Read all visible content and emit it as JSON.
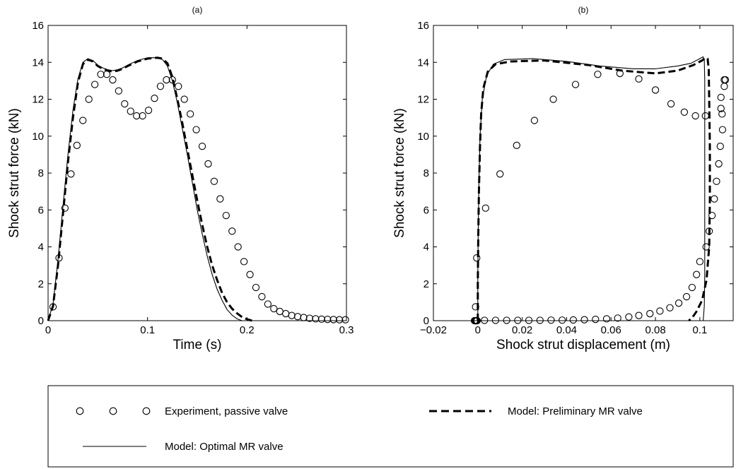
{
  "chart_data": [
    {
      "type": "line",
      "panel": "(a)",
      "xlabel": "Time (s)",
      "ylabel": "Shock strut force (kN)",
      "xlim": [
        0,
        0.3
      ],
      "ylim": [
        0,
        16
      ],
      "xticks": [
        0,
        0.1,
        0.2,
        0.3
      ],
      "xtick_labels": [
        "0",
        "0.1",
        "0.2",
        "0.3"
      ],
      "yticks": [
        0,
        2,
        4,
        6,
        8,
        10,
        12,
        14,
        16
      ],
      "ytick_labels": [
        "0",
        "2",
        "4",
        "6",
        "8",
        "10",
        "12",
        "14",
        "16"
      ],
      "grid": false,
      "series": [
        {
          "name": "Experiment, passive valve",
          "style": "circles",
          "points": [
            [
              0.005,
              0.75
            ],
            [
              0.011,
              3.4
            ],
            [
              0.017,
              6.1
            ],
            [
              0.023,
              7.95
            ],
            [
              0.029,
              9.5
            ],
            [
              0.035,
              10.85
            ],
            [
              0.041,
              12.0
            ],
            [
              0.047,
              12.8
            ],
            [
              0.053,
              13.35
            ],
            [
              0.059,
              13.35
            ],
            [
              0.065,
              13.05
            ],
            [
              0.071,
              12.45
            ],
            [
              0.077,
              11.75
            ],
            [
              0.083,
              11.35
            ],
            [
              0.089,
              11.1
            ],
            [
              0.095,
              11.1
            ],
            [
              0.101,
              11.4
            ],
            [
              0.107,
              12.05
            ],
            [
              0.113,
              12.7
            ],
            [
              0.119,
              13.05
            ],
            [
              0.125,
              13.05
            ],
            [
              0.131,
              12.7
            ],
            [
              0.137,
              12.0
            ],
            [
              0.143,
              11.2
            ],
            [
              0.149,
              10.35
            ],
            [
              0.155,
              9.45
            ],
            [
              0.161,
              8.5
            ],
            [
              0.167,
              7.55
            ],
            [
              0.173,
              6.6
            ],
            [
              0.179,
              5.7
            ],
            [
              0.185,
              4.85
            ],
            [
              0.191,
              4.0
            ],
            [
              0.197,
              3.2
            ],
            [
              0.203,
              2.5
            ],
            [
              0.209,
              1.8
            ],
            [
              0.215,
              1.3
            ],
            [
              0.221,
              0.9
            ],
            [
              0.227,
              0.65
            ],
            [
              0.233,
              0.5
            ],
            [
              0.239,
              0.38
            ],
            [
              0.245,
              0.28
            ],
            [
              0.251,
              0.22
            ],
            [
              0.257,
              0.17
            ],
            [
              0.263,
              0.13
            ],
            [
              0.269,
              0.1
            ],
            [
              0.275,
              0.08
            ],
            [
              0.281,
              0.07
            ],
            [
              0.287,
              0.06
            ],
            [
              0.293,
              0.05
            ],
            [
              0.299,
              0.05
            ]
          ]
        },
        {
          "name": "Model: Preliminary MR valve",
          "style": "dashed",
          "points": [
            [
              0.0,
              0.0
            ],
            [
              0.005,
              0.8
            ],
            [
              0.01,
              3.0
            ],
            [
              0.015,
              5.8
            ],
            [
              0.02,
              8.6
            ],
            [
              0.025,
              11.0
            ],
            [
              0.03,
              12.9
            ],
            [
              0.035,
              13.9
            ],
            [
              0.04,
              14.15
            ],
            [
              0.045,
              14.05
            ],
            [
              0.05,
              13.8
            ],
            [
              0.055,
              13.65
            ],
            [
              0.06,
              13.55
            ],
            [
              0.065,
              13.5
            ],
            [
              0.07,
              13.55
            ],
            [
              0.075,
              13.65
            ],
            [
              0.08,
              13.8
            ],
            [
              0.09,
              14.05
            ],
            [
              0.1,
              14.2
            ],
            [
              0.11,
              14.25
            ],
            [
              0.115,
              14.2
            ],
            [
              0.12,
              13.95
            ],
            [
              0.125,
              13.2
            ],
            [
              0.13,
              12.0
            ],
            [
              0.135,
              10.7
            ],
            [
              0.14,
              9.3
            ],
            [
              0.145,
              7.9
            ],
            [
              0.15,
              6.5
            ],
            [
              0.155,
              5.2
            ],
            [
              0.16,
              4.0
            ],
            [
              0.165,
              3.0
            ],
            [
              0.17,
              2.2
            ],
            [
              0.175,
              1.5
            ],
            [
              0.18,
              1.0
            ],
            [
              0.185,
              0.65
            ],
            [
              0.19,
              0.4
            ],
            [
              0.195,
              0.2
            ],
            [
              0.2,
              0.08
            ],
            [
              0.205,
              0.0
            ]
          ]
        },
        {
          "name": "Model: Optimal MR valve",
          "style": "solid",
          "points": [
            [
              0.0,
              0.0
            ],
            [
              0.005,
              0.9
            ],
            [
              0.01,
              3.3
            ],
            [
              0.015,
              6.2
            ],
            [
              0.02,
              9.0
            ],
            [
              0.025,
              11.4
            ],
            [
              0.03,
              13.1
            ],
            [
              0.035,
              14.0
            ],
            [
              0.04,
              14.2
            ],
            [
              0.045,
              14.1
            ],
            [
              0.05,
              13.85
            ],
            [
              0.055,
              13.7
            ],
            [
              0.06,
              13.6
            ],
            [
              0.065,
              13.55
            ],
            [
              0.07,
              13.6
            ],
            [
              0.075,
              13.7
            ],
            [
              0.08,
              13.85
            ],
            [
              0.09,
              14.1
            ],
            [
              0.1,
              14.25
            ],
            [
              0.11,
              14.25
            ],
            [
              0.115,
              14.15
            ],
            [
              0.12,
              13.8
            ],
            [
              0.125,
              13.0
            ],
            [
              0.13,
              11.8
            ],
            [
              0.135,
              10.4
            ],
            [
              0.14,
              9.0
            ],
            [
              0.145,
              7.5
            ],
            [
              0.15,
              6.0
            ],
            [
              0.155,
              4.7
            ],
            [
              0.16,
              3.5
            ],
            [
              0.165,
              2.5
            ],
            [
              0.17,
              1.7
            ],
            [
              0.175,
              1.1
            ],
            [
              0.18,
              0.6
            ],
            [
              0.185,
              0.3
            ],
            [
              0.19,
              0.1
            ],
            [
              0.195,
              0.0
            ]
          ]
        }
      ]
    },
    {
      "type": "line",
      "panel": "(b)",
      "xlabel": "Shock strut displacement (m)",
      "ylabel": "Shock strut force (kN)",
      "xlim": [
        -0.02,
        0.115
      ],
      "ylim": [
        0,
        16
      ],
      "xticks": [
        -0.02,
        0,
        0.02,
        0.04,
        0.06,
        0.08,
        0.1
      ],
      "xtick_labels": [
        "−0.02",
        "0",
        "0.02",
        "0.04",
        "0.06",
        "0.08",
        "0.1"
      ],
      "yticks": [
        0,
        2,
        4,
        6,
        8,
        10,
        12,
        14,
        16
      ],
      "ytick_labels": [
        "0",
        "2",
        "4",
        "6",
        "8",
        "10",
        "12",
        "14",
        "16"
      ],
      "grid": false,
      "series": [
        {
          "name": "Experiment, passive valve",
          "style": "circles",
          "points": [
            [
              -0.0015,
              0.0
            ],
            [
              -0.0013,
              0.0
            ],
            [
              -0.0011,
              0.0
            ],
            [
              -0.0009,
              0.0
            ],
            [
              -0.0007,
              0.0
            ],
            [
              -0.0005,
              0.0
            ],
            [
              -0.0003,
              0.0
            ],
            [
              -0.001,
              0.75
            ],
            [
              -0.0005,
              3.4
            ],
            [
              0.0035,
              6.1
            ],
            [
              0.01,
              7.95
            ],
            [
              0.0175,
              9.5
            ],
            [
              0.0255,
              10.85
            ],
            [
              0.034,
              12.0
            ],
            [
              0.044,
              12.8
            ],
            [
              0.054,
              13.35
            ],
            [
              0.064,
              13.4
            ],
            [
              0.0725,
              13.1
            ],
            [
              0.08,
              12.5
            ],
            [
              0.087,
              11.75
            ],
            [
              0.093,
              11.3
            ],
            [
              0.098,
              11.1
            ],
            [
              0.1025,
              11.1
            ],
            [
              0.1095,
              12.1
            ],
            [
              0.111,
              13.05
            ],
            [
              0.1115,
              13.05
            ],
            [
              0.111,
              12.7
            ],
            [
              0.1095,
              11.5
            ],
            [
              0.11,
              11.2
            ],
            [
              0.1102,
              10.35
            ],
            [
              0.1092,
              9.45
            ],
            [
              0.1085,
              8.5
            ],
            [
              0.1075,
              7.55
            ],
            [
              0.1065,
              6.6
            ],
            [
              0.1055,
              5.7
            ],
            [
              0.1042,
              4.85
            ],
            [
              0.1028,
              4.0
            ],
            [
              0.1,
              3.2
            ],
            [
              0.0985,
              2.5
            ],
            [
              0.0965,
              1.8
            ],
            [
              0.094,
              1.3
            ],
            [
              0.0905,
              0.95
            ],
            [
              0.0865,
              0.7
            ],
            [
              0.082,
              0.52
            ],
            [
              0.0775,
              0.38
            ],
            [
              0.0725,
              0.28
            ],
            [
              0.068,
              0.2
            ],
            [
              0.063,
              0.14
            ],
            [
              0.058,
              0.1
            ],
            [
              0.053,
              0.07
            ],
            [
              0.048,
              0.05
            ],
            [
              0.043,
              0.04
            ],
            [
              0.038,
              0.03
            ],
            [
              0.033,
              0.03
            ],
            [
              0.028,
              0.02
            ],
            [
              0.023,
              0.02
            ],
            [
              0.018,
              0.02
            ],
            [
              0.013,
              0.02
            ],
            [
              0.008,
              0.02
            ],
            [
              0.003,
              0.02
            ]
          ]
        },
        {
          "name": "Model: Preliminary MR valve",
          "style": "dashed",
          "points": [
            [
              0.0,
              0.0
            ],
            [
              0.0,
              2.0
            ],
            [
              0.0002,
              4.5
            ],
            [
              0.0005,
              7.0
            ],
            [
              0.001,
              9.5
            ],
            [
              0.0015,
              11.2
            ],
            [
              0.0025,
              12.6
            ],
            [
              0.0045,
              13.5
            ],
            [
              0.008,
              13.9
            ],
            [
              0.015,
              14.05
            ],
            [
              0.03,
              14.1
            ],
            [
              0.05,
              13.85
            ],
            [
              0.065,
              13.55
            ],
            [
              0.08,
              13.4
            ],
            [
              0.09,
              13.55
            ],
            [
              0.097,
              13.85
            ],
            [
              0.101,
              14.1
            ],
            [
              0.1025,
              14.25
            ],
            [
              0.1035,
              14.2
            ],
            [
              0.104,
              13.6
            ],
            [
              0.1042,
              12.0
            ],
            [
              0.1045,
              9.5
            ],
            [
              0.1045,
              6.5
            ],
            [
              0.1042,
              4.0
            ],
            [
              0.103,
              2.2
            ],
            [
              0.101,
              1.1
            ],
            [
              0.0985,
              0.5
            ],
            [
              0.0965,
              0.15
            ],
            [
              0.095,
              0.0
            ]
          ]
        },
        {
          "name": "Model: Optimal MR valve",
          "style": "solid",
          "points": [
            [
              0.0,
              0.0
            ],
            [
              0.0,
              2.5
            ],
            [
              0.0002,
              5.0
            ],
            [
              0.0005,
              7.5
            ],
            [
              0.001,
              10.0
            ],
            [
              0.002,
              12.0
            ],
            [
              0.004,
              13.3
            ],
            [
              0.007,
              13.9
            ],
            [
              0.012,
              14.15
            ],
            [
              0.025,
              14.2
            ],
            [
              0.04,
              14.05
            ],
            [
              0.055,
              13.8
            ],
            [
              0.07,
              13.65
            ],
            [
              0.08,
              13.65
            ],
            [
              0.09,
              13.8
            ],
            [
              0.096,
              13.95
            ],
            [
              0.1,
              14.2
            ],
            [
              0.1015,
              14.3
            ],
            [
              0.102,
              14.1
            ],
            [
              0.1022,
              13.0
            ],
            [
              0.1022,
              11.0
            ],
            [
              0.1022,
              8.0
            ],
            [
              0.1022,
              5.0
            ],
            [
              0.1022,
              2.5
            ],
            [
              0.102,
              0.8
            ],
            [
              0.1015,
              0.0
            ]
          ]
        }
      ]
    }
  ],
  "legend": {
    "placement": "bottom",
    "items": [
      {
        "label": "Experiment, passive valve",
        "style": "circles"
      },
      {
        "label": "Model: Preliminary MR valve",
        "style": "dashed"
      },
      {
        "label": "Model: Optimal MR valve",
        "style": "solid"
      }
    ]
  }
}
